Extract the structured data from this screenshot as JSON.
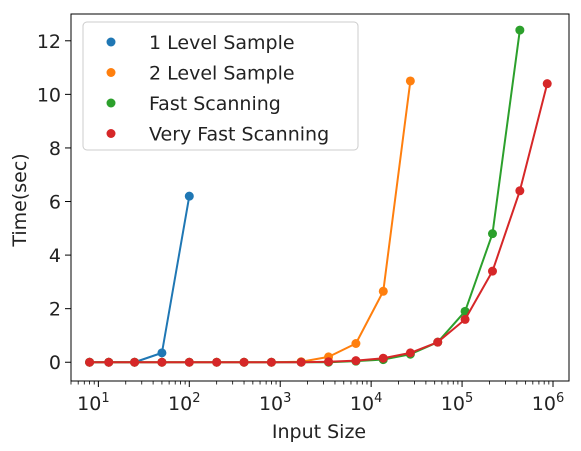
{
  "chart_data": {
    "type": "line",
    "xscale": "log",
    "xlabel": "Input Size",
    "ylabel": "Time(sec)",
    "xlim": [
      5,
      1500000
    ],
    "ylim": [
      -0.7,
      13.0
    ],
    "yticks": [
      0,
      2,
      4,
      6,
      8,
      10,
      12
    ],
    "ytick_labels": [
      "0",
      "2",
      "4",
      "6",
      "8",
      "10",
      "12"
    ],
    "xticks": [
      10,
      100,
      1000,
      10000,
      100000,
      1000000
    ],
    "xtick_labels": [
      {
        "base": "10",
        "exp": "1"
      },
      {
        "base": "10",
        "exp": "2"
      },
      {
        "base": "10",
        "exp": "3"
      },
      {
        "base": "10",
        "exp": "4"
      },
      {
        "base": "10",
        "exp": "5"
      },
      {
        "base": "10",
        "exp": "6"
      }
    ],
    "grid": false,
    "legend_position": "top-left",
    "series": [
      {
        "name": "1 Level Sample",
        "color": "#1f77b4",
        "x": [
          8,
          13,
          25,
          50,
          100
        ],
        "y": [
          0.0,
          0.0,
          0.0,
          0.35,
          6.2
        ]
      },
      {
        "name": "2 Level Sample",
        "color": "#ff7f0e",
        "x": [
          8,
          13,
          25,
          50,
          100,
          200,
          400,
          800,
          1700,
          3400,
          6800,
          13600,
          27000
        ],
        "y": [
          0.0,
          0.0,
          0.0,
          0.0,
          0.0,
          0.0,
          0.0,
          0.0,
          0.02,
          0.2,
          0.7,
          2.65,
          10.5
        ]
      },
      {
        "name": "Fast Scanning",
        "color": "#2ca02c",
        "x": [
          8,
          13,
          25,
          50,
          100,
          200,
          400,
          800,
          1700,
          3400,
          6800,
          13600,
          27000,
          54000,
          108000,
          216000,
          432000
        ],
        "y": [
          0.0,
          0.0,
          0.0,
          0.0,
          0.0,
          0.0,
          0.0,
          0.0,
          0.0,
          0.0,
          0.04,
          0.1,
          0.3,
          0.75,
          1.9,
          4.8,
          12.4
        ]
      },
      {
        "name": "Very Fast Scanning",
        "color": "#d62728",
        "x": [
          8,
          13,
          25,
          50,
          100,
          200,
          400,
          800,
          1700,
          3400,
          6800,
          13600,
          27000,
          54000,
          108000,
          216000,
          432000,
          864000
        ],
        "y": [
          0.0,
          0.0,
          0.0,
          0.0,
          0.0,
          0.0,
          0.0,
          0.0,
          0.0,
          0.02,
          0.06,
          0.15,
          0.35,
          0.75,
          1.6,
          3.4,
          6.4,
          10.4
        ]
      }
    ]
  }
}
